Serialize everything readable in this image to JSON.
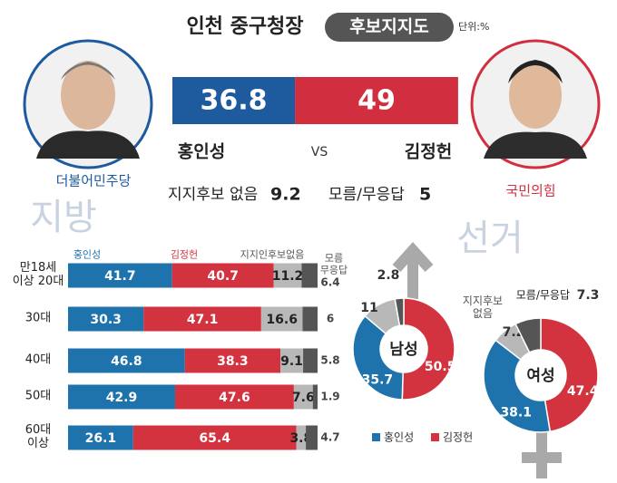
{
  "header": {
    "title": "인천 중구청장",
    "badge": "후보지지도",
    "unit": "단위:%"
  },
  "candidates": [
    {
      "name": "홍인성",
      "party": "더불어민주당",
      "value": 36.8,
      "color": "#1d5a9e"
    },
    {
      "name": "김정헌",
      "party": "국민의힘",
      "value": 49.0,
      "color": "#d12e40"
    }
  ],
  "vs": "VS",
  "others": [
    {
      "label": "지지후보 없음",
      "value": 9.2
    },
    {
      "label": "모름/무응답",
      "value": 5.0
    }
  ],
  "watermark": [
    "지방",
    "선거"
  ],
  "chart_data": [
    {
      "type": "bar",
      "stacked": true,
      "orientation": "horizontal",
      "categories": [
        "만18세\n이상 20대",
        "30대",
        "40대",
        "50대",
        "60대\n이상"
      ],
      "series": [
        {
          "name": "홍인성",
          "color": "#1f73ad",
          "values": [
            41.7,
            30.3,
            46.8,
            42.9,
            26.1
          ]
        },
        {
          "name": "김정헌",
          "color": "#d3323f",
          "values": [
            40.7,
            47.1,
            38.3,
            47.6,
            65.4
          ]
        },
        {
          "name": "지지인후보없음",
          "color": "#b8b8b8",
          "values": [
            11.2,
            16.6,
            9.1,
            7.6,
            3.8
          ]
        },
        {
          "name": "모름\n무응답",
          "color": "#555555",
          "values": [
            6.4,
            6.0,
            5.8,
            1.9,
            4.7
          ]
        }
      ]
    },
    {
      "type": "pie",
      "title": "남성",
      "categories": [
        "김정헌",
        "홍인성",
        "지지후보 없음",
        "모름/무응답"
      ],
      "colors": [
        "#d3323f",
        "#1f73ad",
        "#b8b8b8",
        "#555555"
      ],
      "values": [
        50.5,
        35.7,
        11.0,
        2.8
      ]
    },
    {
      "type": "pie",
      "title": "여성",
      "categories": [
        "김정헌",
        "홍인성",
        "지지후보\n없음",
        "모름/무응답"
      ],
      "colors": [
        "#d3323f",
        "#1f73ad",
        "#b8b8b8",
        "#555555"
      ],
      "values": [
        47.4,
        38.1,
        7.2,
        7.3
      ]
    }
  ]
}
